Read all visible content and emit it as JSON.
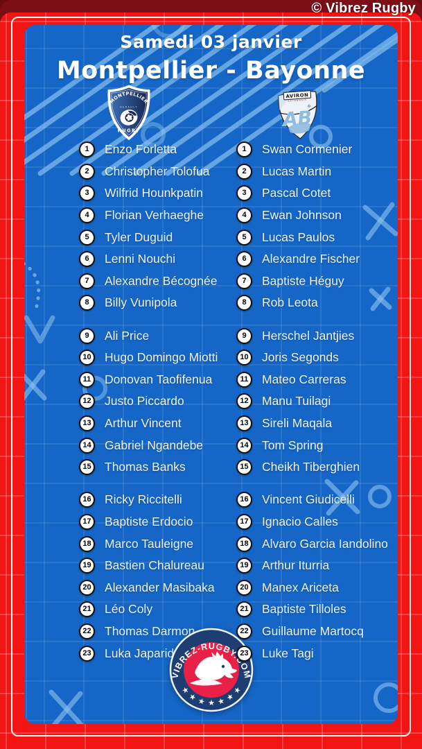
{
  "meta": {
    "copyright": "© Vibrez Rugby"
  },
  "header": {
    "date": "Samedi 03 janvier",
    "match": "Montpellier - Bayonne"
  },
  "teams": {
    "home": {
      "name": "Montpellier",
      "logo": {
        "top_text": "MONTPELLIER",
        "sub_text": "HERAULT",
        "bottom_text": "RUGBY"
      },
      "players": [
        {
          "number": 1,
          "name": "Enzo Forletta"
        },
        {
          "number": 2,
          "name": "Christopher Tolofua"
        },
        {
          "number": 3,
          "name": "Wilfrid Hounkpatin"
        },
        {
          "number": 4,
          "name": "Florian Verhaeghe"
        },
        {
          "number": 5,
          "name": "Tyler Duguid"
        },
        {
          "number": 6,
          "name": "Lenni Nouchi"
        },
        {
          "number": 7,
          "name": "Alexandre Bécognée"
        },
        {
          "number": 8,
          "name": "Billy Vunipola"
        },
        {
          "number": 9,
          "name": "Ali Price"
        },
        {
          "number": 10,
          "name": "Hugo Domingo Miotti"
        },
        {
          "number": 11,
          "name": "Donovan Taofifenua"
        },
        {
          "number": 12,
          "name": "Justo Piccardo"
        },
        {
          "number": 13,
          "name": "Arthur Vincent"
        },
        {
          "number": 14,
          "name": "Gabriel Ngandebe"
        },
        {
          "number": 15,
          "name": "Thomas Banks"
        },
        {
          "number": 16,
          "name": "Ricky Riccitelli"
        },
        {
          "number": 17,
          "name": "Baptiste Erdocio"
        },
        {
          "number": 18,
          "name": "Marco Tauleigne"
        },
        {
          "number": 19,
          "name": "Bastien Chalureau"
        },
        {
          "number": 20,
          "name": "Alexander Masibaka"
        },
        {
          "number": 21,
          "name": "Léo Coly"
        },
        {
          "number": 22,
          "name": "Thomas Darmon"
        },
        {
          "number": 23,
          "name": "Luka Japaridze"
        }
      ]
    },
    "away": {
      "name": "Bayonne",
      "logo": {
        "top_text": "AVIRON",
        "sub_text": "BAYONNAIS",
        "monogram": "AB"
      },
      "players": [
        {
          "number": 1,
          "name": "Swan Cormenier"
        },
        {
          "number": 2,
          "name": "Lucas Martin"
        },
        {
          "number": 3,
          "name": "Pascal Cotet"
        },
        {
          "number": 4,
          "name": "Ewan Johnson"
        },
        {
          "number": 5,
          "name": "Lucas Paulos"
        },
        {
          "number": 6,
          "name": "Alexandre Fischer"
        },
        {
          "number": 7,
          "name": "Baptiste Héguy"
        },
        {
          "number": 8,
          "name": "Rob Leota"
        },
        {
          "number": 9,
          "name": "Herschel Jantjies"
        },
        {
          "number": 10,
          "name": "Joris Segonds"
        },
        {
          "number": 11,
          "name": "Mateo Carreras"
        },
        {
          "number": 12,
          "name": "Manu Tuilagi"
        },
        {
          "number": 13,
          "name": "Sireli Maqala"
        },
        {
          "number": 14,
          "name": "Tom Spring"
        },
        {
          "number": 15,
          "name": "Cheikh Tiberghien"
        },
        {
          "number": 16,
          "name": "Vincent Giudicelli"
        },
        {
          "number": 17,
          "name": "Ignacio Calles"
        },
        {
          "number": 18,
          "name": "Alvaro Garcia Iandolino"
        },
        {
          "number": 19,
          "name": "Arthur Iturria"
        },
        {
          "number": 20,
          "name": "Manex Ariceta"
        },
        {
          "number": 21,
          "name": "Baptiste Tilloles"
        },
        {
          "number": 22,
          "name": "Guillaume Martocq"
        },
        {
          "number": 23,
          "name": "Luke Tagi"
        }
      ]
    }
  },
  "footer_badge": {
    "text": "VIBREZ-RUGBY.COM",
    "star_count": 7
  },
  "colors": {
    "board_blue": "#1566c6",
    "frame_red": "#f31414",
    "maroon_band": "#7c0e16",
    "doodle_blue": "#8cc3f0",
    "badge_navy": "#1c3e73",
    "badge_red": "#e92048",
    "bayonne_blue": "#8fbbdf",
    "montpellier_navy": "#1b2a55"
  }
}
